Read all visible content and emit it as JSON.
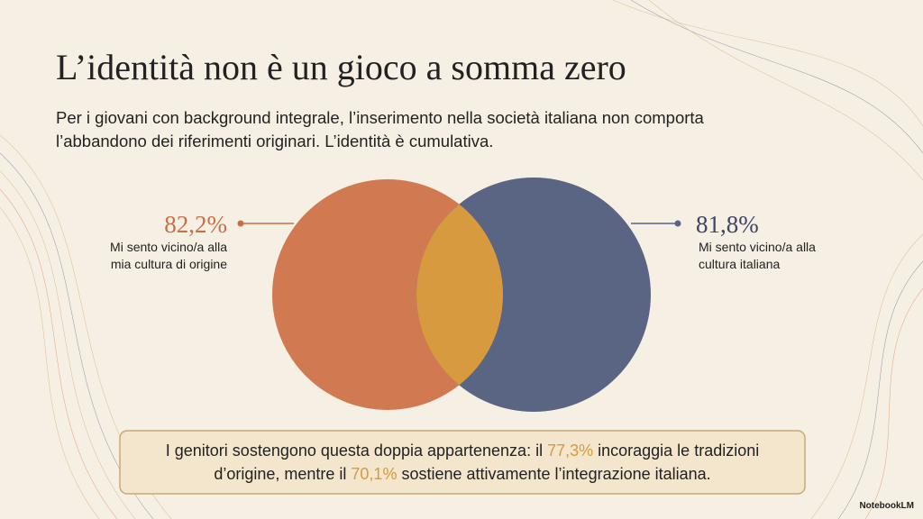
{
  "header": {
    "title": "L’identità non è un gioco a somma zero",
    "subtitle_lines": [
      "Per i giovani con background integrale, l’inserimento nella società italiana non comporta",
      "l’abbandono dei riferimenti originari. L’identità è cumulativa."
    ]
  },
  "venn": {
    "left": {
      "value": "82,2%",
      "label_lines": [
        "Mi sento vicino/a alla",
        "mia cultura di origine"
      ]
    },
    "right": {
      "value": "81,8%",
      "label_lines": [
        "Mi sento vicino/a alla",
        "cultura italiana"
      ]
    }
  },
  "callout": {
    "segments": [
      "I genitori sostengono questa doppia appartenenza: il ",
      "77,3%",
      " incoraggia le tradizioni",
      "d’origine, mentre il ",
      "70,1%",
      " sostiene attivamente l’integrazione italiana."
    ]
  },
  "footer": {
    "brand": "NotebookLM"
  }
}
